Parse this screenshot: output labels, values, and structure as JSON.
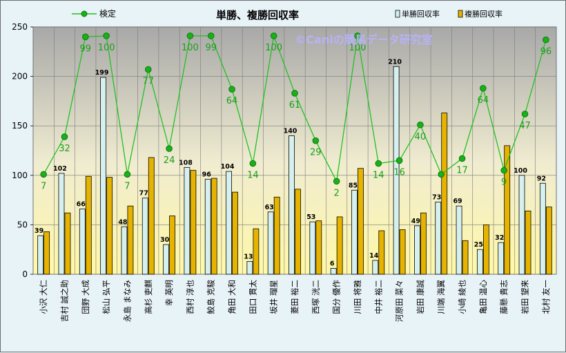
{
  "chart_data": {
    "type": "bar",
    "title": "単勝、複勝回収率",
    "watermark": "©Caniの競馬データ研究室",
    "ylim": [
      0,
      250
    ],
    "yticks": [
      0,
      50,
      100,
      150,
      200,
      250
    ],
    "grid": true,
    "legend_placement": "top",
    "categories": [
      "小沢 大仁",
      "吉村 誠之助",
      "団野 大成",
      "松山 弘平",
      "永島 まなみ",
      "高杉 吏麒",
      "幸 英明",
      "西村 淳也",
      "鮫島 克駿",
      "角田 大和",
      "田口 貫太",
      "坂井 瑠星",
      "菱田 裕二",
      "西塚 洸二",
      "国分 優作",
      "川田 将雅",
      "中井 裕二",
      "河原田 菜々",
      "岩田 康誠",
      "川端 海翼",
      "小崎 綾也",
      "亀田 温心",
      "藤懸 貴志",
      "岩田 望来",
      "北村 友一"
    ],
    "series": [
      {
        "name": "単勝回収率",
        "kind": "bar",
        "color": "#d6f0f0",
        "values": [
          39,
          102,
          66,
          199,
          48,
          77,
          30,
          108,
          96,
          104,
          13,
          63,
          140,
          53,
          6,
          85,
          14,
          210,
          49,
          73,
          69,
          25,
          32,
          100,
          92
        ]
      },
      {
        "name": "複勝回収率",
        "kind": "bar",
        "color": "#e6b400",
        "values": [
          43,
          62,
          99,
          98,
          69,
          118,
          59,
          105,
          97,
          83,
          46,
          78,
          86,
          54,
          58,
          107,
          44,
          45,
          62,
          163,
          34,
          50,
          130,
          64,
          68
        ]
      },
      {
        "name": "検定",
        "kind": "line",
        "color": "#22c022",
        "values": [
          101,
          139,
          240,
          241,
          101,
          207,
          127,
          241,
          241,
          187,
          112,
          241,
          183,
          135,
          94,
          241,
          112,
          115,
          151,
          101,
          117,
          188,
          105,
          162,
          237
        ],
        "labels": [
          "7",
          "32",
          "99",
          "100",
          "7",
          "77",
          "24",
          "100",
          "99",
          "64",
          "14",
          "100",
          "61",
          "29",
          "2",
          "100",
          "14",
          "16",
          "40",
          "",
          "17",
          "64",
          "9",
          "47",
          "96"
        ]
      }
    ]
  }
}
